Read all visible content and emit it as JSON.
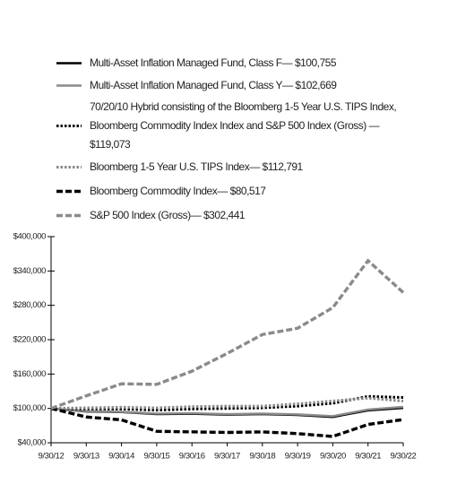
{
  "chart_data": {
    "type": "line",
    "categories": [
      "9/30/12",
      "9/30/13",
      "9/30/14",
      "9/30/15",
      "9/30/16",
      "9/30/17",
      "9/30/18",
      "9/30/19",
      "9/30/20",
      "9/30/21",
      "9/30/22"
    ],
    "ylim": [
      40000,
      400000
    ],
    "yticks": [
      {
        "value": 40000,
        "label": "$40,000"
      },
      {
        "value": 100000,
        "label": "$100,000"
      },
      {
        "value": 160000,
        "label": "$160,000"
      },
      {
        "value": 220000,
        "label": "$220,000"
      },
      {
        "value": 280000,
        "label": "$280,000"
      },
      {
        "value": 340000,
        "label": "$340,000"
      },
      {
        "value": 400000,
        "label": "$400,000"
      }
    ],
    "series": [
      {
        "name": "Multi-Asset Inflation Managed Fund, Class F— $100,755",
        "color": "#000000",
        "dash": "solid",
        "values": [
          100000,
          94500,
          93500,
          90000,
          90500,
          89000,
          90000,
          88500,
          85000,
          96500,
          100755
        ]
      },
      {
        "name": "Multi-Asset Inflation Managed Fund, Class Y— $102,669",
        "color": "#8a8a8a",
        "dash": "solid",
        "values": [
          100000,
          95000,
          94000,
          91000,
          91500,
          90000,
          91000,
          89500,
          86500,
          98000,
          102669
        ]
      },
      {
        "name": "70/20/10 Hybrid consisting of the Bloomberg 1-5 Year U.S. TIPS Index, Bloomberg Commodity Index Index and S&P 500 Index (Gross) — $119,073",
        "color": "#000000",
        "dash": "dotted",
        "values": [
          100000,
          99000,
          99000,
          97000,
          99000,
          100000,
          101000,
          104000,
          109000,
          121000,
          119073
        ]
      },
      {
        "name": "Bloomberg 1-5 Year U.S. TIPS Index— $112,791",
        "color": "#8a8a8a",
        "dash": "dotted",
        "values": [
          100000,
          101000,
          102000,
          101000,
          103000,
          104000,
          104000,
          108000,
          113000,
          118000,
          112791
        ]
      },
      {
        "name": "Bloomberg Commodity Index— $80,517",
        "color": "#000000",
        "dash": "dashed",
        "values": [
          100000,
          85000,
          80000,
          60000,
          59000,
          58000,
          59000,
          56000,
          51000,
          72000,
          80517
        ]
      },
      {
        "name": "S&P 500 Index (Gross)— $302,441",
        "color": "#8a8a8a",
        "dash": "dashed",
        "values": [
          100000,
          122000,
          143000,
          142000,
          165000,
          196000,
          229000,
          240000,
          276000,
          358000,
          302441
        ]
      }
    ]
  }
}
